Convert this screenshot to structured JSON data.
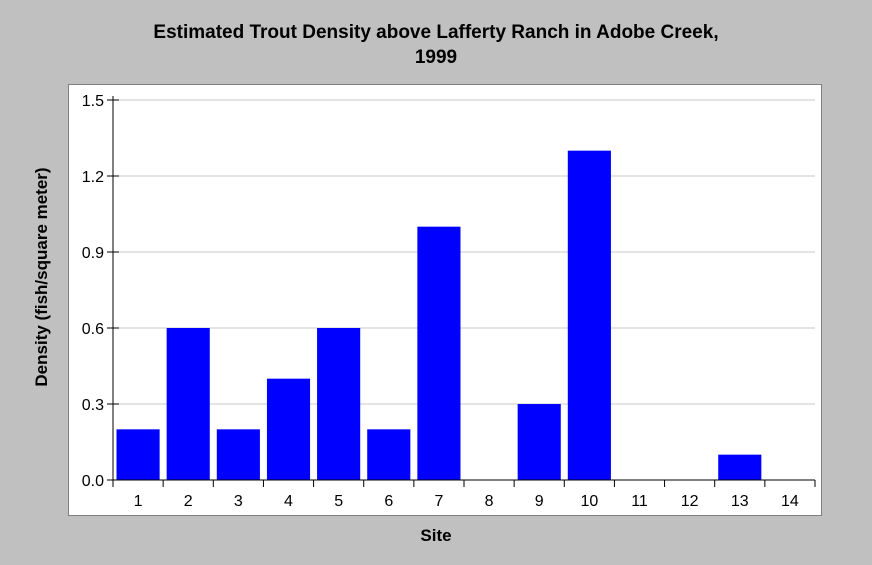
{
  "chart_data": {
    "type": "bar",
    "title_line1": "Estimated Trout Density above Lafferty Ranch in Adobe Creek,",
    "title_line2": "1999",
    "xlabel": "Site",
    "ylabel": "Density (fish/square meter)",
    "categories": [
      "1",
      "2",
      "3",
      "4",
      "5",
      "6",
      "7",
      "8",
      "9",
      "10",
      "11",
      "12",
      "13",
      "14"
    ],
    "values": [
      0.2,
      0.6,
      0.2,
      0.4,
      0.6,
      0.2,
      1.0,
      0,
      0.3,
      1.3,
      0,
      0,
      0.1,
      0
    ],
    "ylim": [
      0,
      1.5
    ],
    "yticks": [
      "0.0",
      "0.3",
      "0.6",
      "0.9",
      "1.2",
      "1.5"
    ],
    "grid": true,
    "colors": {
      "bar": "#0000ff",
      "background": "#c0c0c0",
      "plot": "#ffffff"
    }
  }
}
